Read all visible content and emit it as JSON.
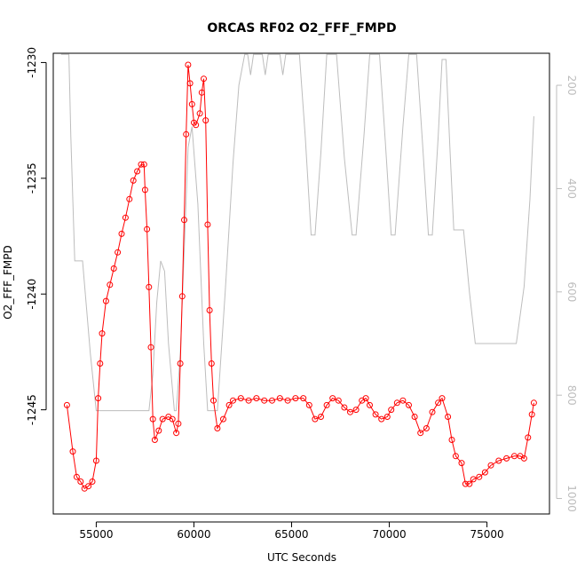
{
  "chart_data": {
    "type": "scatter",
    "title": "ORCAS RF02 O2_FFF_FMPD",
    "xlabel": "UTC Seconds",
    "ylabel": "O2_FFF_FMPD",
    "xlim": [
      52800,
      78200
    ],
    "ylim": [
      -1249.5,
      -1229.6
    ],
    "x_ticks": [
      55000,
      60000,
      65000,
      70000,
      75000
    ],
    "x_tick_labels": [
      "55000",
      "60000",
      "65000",
      "70000",
      "75000"
    ],
    "y_ticks": [
      -1245,
      -1240,
      -1235,
      -1230
    ],
    "y_tick_labels": [
      "-1245",
      "-1240",
      "-1235",
      "-1230"
    ],
    "y2_ticks": [
      200,
      400,
      600,
      800,
      1000
    ],
    "y2_tick_labels": [
      "200",
      "400",
      "600",
      "800",
      "1000"
    ],
    "y2lim": [
      1030,
      138
    ],
    "grid": false,
    "series": [
      {
        "kind": "points-connected",
        "color": "#ff0000",
        "points": [
          [
            53500,
            -1244.8
          ],
          [
            53800,
            -1246.8
          ],
          [
            54000,
            -1247.9
          ],
          [
            54200,
            -1248.1
          ],
          [
            54400,
            -1248.4
          ],
          [
            54600,
            -1248.3
          ],
          [
            54800,
            -1248.1
          ],
          [
            55000,
            -1247.2
          ],
          [
            55100,
            -1244.5
          ],
          [
            55200,
            -1243.0
          ],
          [
            55300,
            -1241.7
          ],
          [
            55500,
            -1240.3
          ],
          [
            55700,
            -1239.6
          ],
          [
            55900,
            -1238.9
          ],
          [
            56100,
            -1238.2
          ],
          [
            56300,
            -1237.4
          ],
          [
            56500,
            -1236.7
          ],
          [
            56700,
            -1235.9
          ],
          [
            56900,
            -1235.1
          ],
          [
            57100,
            -1234.7
          ],
          [
            57300,
            -1234.4
          ],
          [
            57450,
            -1234.4
          ],
          [
            57500,
            -1235.5
          ],
          [
            57600,
            -1237.2
          ],
          [
            57700,
            -1239.7
          ],
          [
            57800,
            -1242.3
          ],
          [
            57900,
            -1245.4
          ],
          [
            58000,
            -1246.3
          ],
          [
            58200,
            -1245.9
          ],
          [
            58400,
            -1245.4
          ],
          [
            58700,
            -1245.3
          ],
          [
            58900,
            -1245.4
          ],
          [
            59100,
            -1246.0
          ],
          [
            59200,
            -1245.6
          ],
          [
            59300,
            -1243.0
          ],
          [
            59400,
            -1240.1
          ],
          [
            59500,
            -1236.8
          ],
          [
            59600,
            -1233.1
          ],
          [
            59700,
            -1230.1
          ],
          [
            59800,
            -1230.9
          ],
          [
            59900,
            -1231.8
          ],
          [
            60000,
            -1232.6
          ],
          [
            60100,
            -1232.7
          ],
          [
            60300,
            -1232.2
          ],
          [
            60400,
            -1231.3
          ],
          [
            60500,
            -1230.7
          ],
          [
            60600,
            -1232.5
          ],
          [
            60700,
            -1237.0
          ],
          [
            60800,
            -1240.7
          ],
          [
            60900,
            -1243.0
          ],
          [
            61000,
            -1244.6
          ],
          [
            61200,
            -1245.8
          ],
          [
            61500,
            -1245.4
          ],
          [
            61800,
            -1244.8
          ],
          [
            62000,
            -1244.6
          ],
          [
            62400,
            -1244.5
          ],
          [
            62800,
            -1244.6
          ],
          [
            63200,
            -1244.5
          ],
          [
            63600,
            -1244.6
          ],
          [
            64000,
            -1244.6
          ],
          [
            64400,
            -1244.5
          ],
          [
            64800,
            -1244.6
          ],
          [
            65200,
            -1244.5
          ],
          [
            65600,
            -1244.5
          ],
          [
            65900,
            -1244.8
          ],
          [
            66200,
            -1245.4
          ],
          [
            66500,
            -1245.3
          ],
          [
            66800,
            -1244.8
          ],
          [
            67100,
            -1244.5
          ],
          [
            67400,
            -1244.6
          ],
          [
            67700,
            -1244.9
          ],
          [
            68000,
            -1245.1
          ],
          [
            68300,
            -1245.0
          ],
          [
            68600,
            -1244.6
          ],
          [
            68800,
            -1244.5
          ],
          [
            69000,
            -1244.8
          ],
          [
            69300,
            -1245.2
          ],
          [
            69600,
            -1245.4
          ],
          [
            69900,
            -1245.3
          ],
          [
            70100,
            -1245.0
          ],
          [
            70400,
            -1244.7
          ],
          [
            70700,
            -1244.6
          ],
          [
            71000,
            -1244.8
          ],
          [
            71300,
            -1245.3
          ],
          [
            71600,
            -1246.0
          ],
          [
            71900,
            -1245.8
          ],
          [
            72200,
            -1245.1
          ],
          [
            72500,
            -1244.7
          ],
          [
            72700,
            -1244.5
          ],
          [
            73000,
            -1245.3
          ],
          [
            73200,
            -1246.3
          ],
          [
            73400,
            -1247.0
          ],
          [
            73700,
            -1247.3
          ],
          [
            73900,
            -1248.2
          ],
          [
            74100,
            -1248.2
          ],
          [
            74300,
            -1248.0
          ],
          [
            74600,
            -1247.9
          ],
          [
            74900,
            -1247.7
          ],
          [
            75200,
            -1247.4
          ],
          [
            75600,
            -1247.2
          ],
          [
            76000,
            -1247.1
          ],
          [
            76400,
            -1247.0
          ],
          [
            76700,
            -1247.0
          ],
          [
            76900,
            -1247.1
          ],
          [
            77100,
            -1246.2
          ],
          [
            77300,
            -1245.2
          ],
          [
            77400,
            -1244.7
          ]
        ]
      },
      {
        "kind": "secondary-line",
        "color": "#bdbdbd",
        "axis": "right",
        "points": [
          [
            53200,
            140
          ],
          [
            53600,
            140
          ],
          [
            53700,
            300
          ],
          [
            53900,
            540
          ],
          [
            54300,
            540
          ],
          [
            54700,
            720
          ],
          [
            55000,
            830
          ],
          [
            57300,
            830
          ],
          [
            57700,
            830
          ],
          [
            57900,
            760
          ],
          [
            58100,
            620
          ],
          [
            58300,
            540
          ],
          [
            58500,
            560
          ],
          [
            58700,
            700
          ],
          [
            59000,
            830
          ],
          [
            59100,
            830
          ],
          [
            59300,
            720
          ],
          [
            59500,
            520
          ],
          [
            59700,
            320
          ],
          [
            59900,
            280
          ],
          [
            60200,
            430
          ],
          [
            60500,
            700
          ],
          [
            60700,
            830
          ],
          [
            61200,
            830
          ],
          [
            61600,
            600
          ],
          [
            62000,
            350
          ],
          [
            62300,
            200
          ],
          [
            62600,
            140
          ],
          [
            62750,
            140
          ],
          [
            62900,
            180
          ],
          [
            63050,
            140
          ],
          [
            63500,
            140
          ],
          [
            63650,
            180
          ],
          [
            63800,
            140
          ],
          [
            64400,
            140
          ],
          [
            64550,
            180
          ],
          [
            64700,
            140
          ],
          [
            65400,
            140
          ],
          [
            65700,
            300
          ],
          [
            66000,
            490
          ],
          [
            66200,
            490
          ],
          [
            66500,
            330
          ],
          [
            66800,
            140
          ],
          [
            67300,
            140
          ],
          [
            67700,
            340
          ],
          [
            68100,
            490
          ],
          [
            68300,
            490
          ],
          [
            68700,
            300
          ],
          [
            69000,
            140
          ],
          [
            69500,
            140
          ],
          [
            69800,
            310
          ],
          [
            70100,
            490
          ],
          [
            70300,
            490
          ],
          [
            70700,
            280
          ],
          [
            71000,
            140
          ],
          [
            71400,
            140
          ],
          [
            71700,
            310
          ],
          [
            72000,
            490
          ],
          [
            72200,
            490
          ],
          [
            72500,
            300
          ],
          [
            72700,
            150
          ],
          [
            72900,
            150
          ],
          [
            73100,
            320
          ],
          [
            73300,
            480
          ],
          [
            73800,
            480
          ],
          [
            74100,
            600
          ],
          [
            74400,
            700
          ],
          [
            76500,
            700
          ],
          [
            76900,
            590
          ],
          [
            77200,
            420
          ],
          [
            77400,
            260
          ]
        ]
      }
    ]
  }
}
